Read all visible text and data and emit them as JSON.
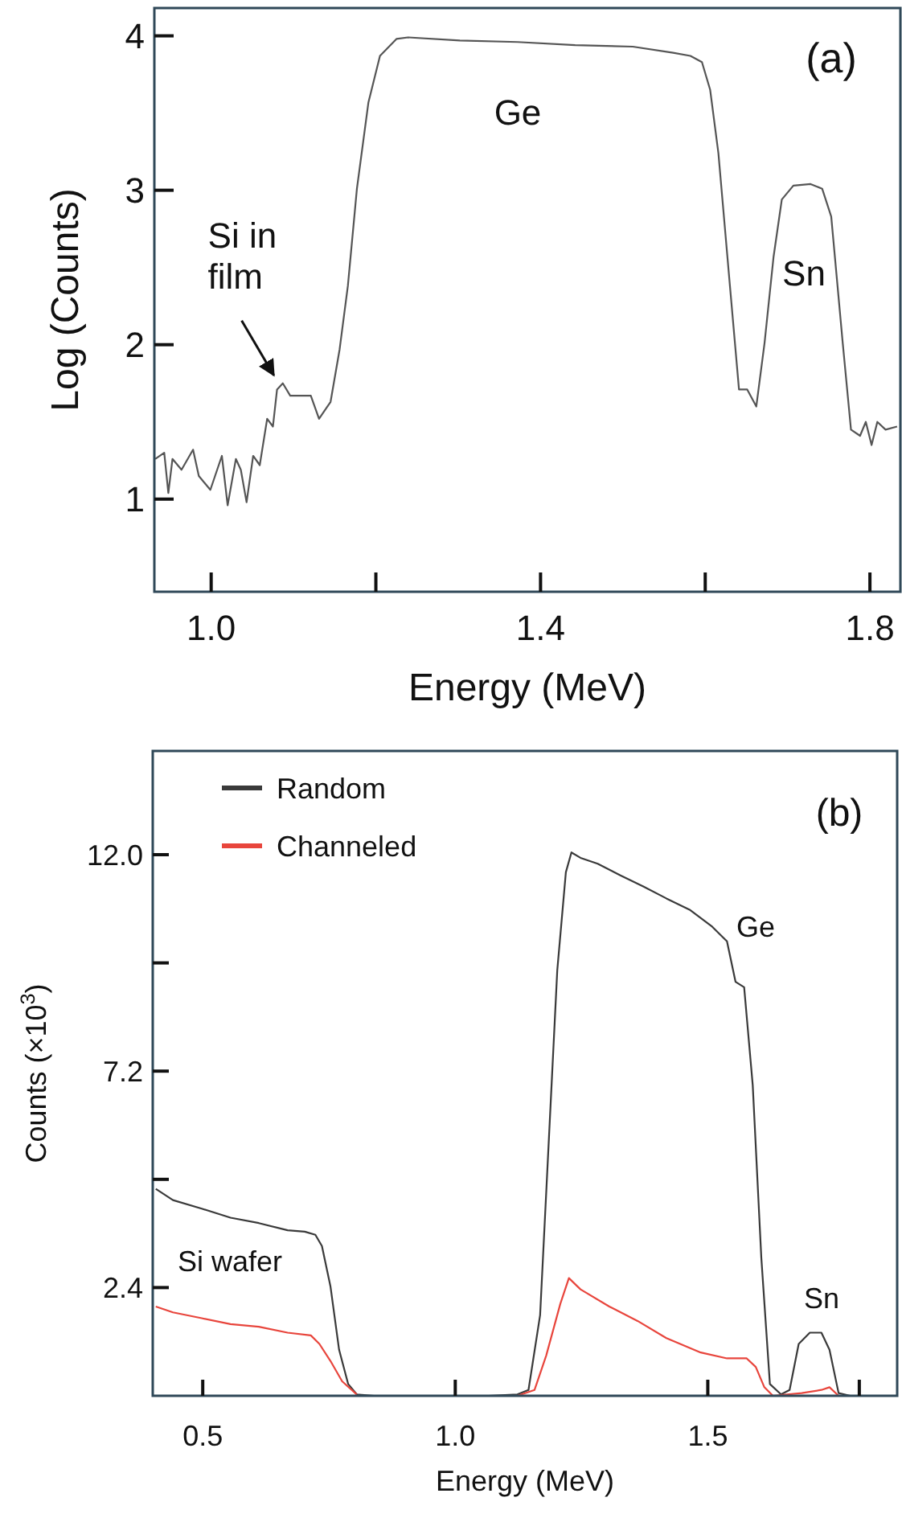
{
  "chart_data": [
    {
      "type": "line",
      "title": "(a)",
      "xlabel": "Energy (MeV)",
      "ylabel": "Log (Counts)",
      "xlim": [
        0.931,
        1.837
      ],
      "xticks": [
        {
          "value": 1.0,
          "label": "1.0"
        },
        {
          "value": 1.2,
          "label": null
        },
        1.4,
        {
          "value": 1.6,
          "label": null
        },
        1.8
      ],
      "ylim": [
        0.4,
        4.18
      ],
      "yticks": [
        1,
        2,
        3,
        4
      ],
      "grid": false,
      "legend": false,
      "series": [
        {
          "color": "#555555",
          "x": [
            0.932,
            0.943,
            0.948,
            0.953,
            0.964,
            0.978,
            0.985,
            0.999,
            1.013,
            1.02,
            1.03,
            1.036,
            1.043,
            1.051,
            1.059,
            1.068,
            1.075,
            1.08,
            1.087,
            1.096,
            1.11,
            1.121,
            1.131,
            1.145,
            1.156,
            1.166,
            1.177,
            1.191,
            1.205,
            1.225,
            1.239,
            1.302,
            1.372,
            1.442,
            1.512,
            1.561,
            1.582,
            1.596,
            1.606,
            1.616,
            1.63,
            1.641,
            1.651,
            1.662,
            1.672,
            1.683,
            1.693,
            1.707,
            1.728,
            1.742,
            1.753,
            1.767,
            1.777,
            1.788,
            1.795,
            1.802,
            1.809,
            1.819,
            1.833
          ],
          "values": [
            1.26,
            1.3,
            1.04,
            1.26,
            1.19,
            1.32,
            1.15,
            1.06,
            1.28,
            0.96,
            1.26,
            1.19,
            0.98,
            1.28,
            1.22,
            1.52,
            1.47,
            1.71,
            1.75,
            1.67,
            1.67,
            1.67,
            1.52,
            1.63,
            1.97,
            2.38,
            3.01,
            3.57,
            3.87,
            3.98,
            3.99,
            3.97,
            3.96,
            3.94,
            3.93,
            3.89,
            3.87,
            3.83,
            3.65,
            3.24,
            2.38,
            1.71,
            1.71,
            1.6,
            2.01,
            2.57,
            2.94,
            3.03,
            3.04,
            3.01,
            2.83,
            2.01,
            1.45,
            1.41,
            1.5,
            1.35,
            1.5,
            1.45,
            1.47
          ]
        }
      ],
      "annotations": [
        {
          "text": "Si in film",
          "x": 1.08,
          "y": 1.75
        },
        "Ge",
        "Sn"
      ]
    },
    {
      "type": "line",
      "title": "(b)",
      "xlabel": "Energy (MeV)",
      "ylabel": "Counts (×10$^{3}$)",
      "xlim": [
        0.401,
        1.875
      ],
      "xticks": [
        0.5,
        {
          "value": 1.0,
          "label": "1.0"
        },
        1.5,
        {
          "value": 1.8,
          "label": null
        }
      ],
      "ylim": [
        0,
        14.3
      ],
      "yticks": [
        {
          "value": 2.4,
          "label": "2.4"
        },
        {
          "value": 4.8,
          "label": null
        },
        {
          "value": 7.2,
          "label": "7.2"
        },
        {
          "value": 9.6,
          "label": null
        },
        {
          "value": 12.0,
          "label": "12.0"
        }
      ],
      "grid": false,
      "legend": "top left",
      "series": [
        {
          "name": "Random",
          "color": "#3a3a3a",
          "x": [
            0.407,
            0.441,
            0.498,
            0.555,
            0.611,
            0.668,
            0.702,
            0.723,
            0.736,
            0.753,
            0.77,
            0.788,
            0.805,
            0.839,
            0.95,
            1.066,
            1.123,
            1.145,
            1.168,
            1.185,
            1.202,
            1.219,
            1.23,
            1.248,
            1.282,
            1.327,
            1.373,
            1.418,
            1.464,
            1.509,
            1.538,
            1.555,
            1.572,
            1.589,
            1.606,
            1.623,
            1.645,
            1.662,
            1.68,
            1.702,
            1.725,
            1.741,
            1.759,
            1.782
          ],
          "values": [
            4.59,
            4.34,
            4.15,
            3.95,
            3.83,
            3.67,
            3.64,
            3.57,
            3.32,
            2.42,
            1.02,
            0.26,
            0.03,
            0,
            0,
            0,
            0.03,
            0.13,
            1.79,
            5.61,
            9.44,
            11.61,
            12.05,
            11.93,
            11.8,
            11.54,
            11.29,
            11.03,
            10.78,
            10.4,
            10.08,
            9.18,
            9.06,
            6.89,
            3.06,
            0.26,
            0.03,
            0.13,
            1.15,
            1.4,
            1.4,
            1.02,
            0.06,
            0
          ]
        },
        {
          "name": "Channeled",
          "color": "#e8453c",
          "x": [
            0.407,
            0.441,
            0.498,
            0.555,
            0.611,
            0.668,
            0.714,
            0.731,
            0.753,
            0.776,
            0.805,
            0.839,
            1.0,
            1.123,
            1.157,
            1.18,
            1.208,
            1.225,
            1.248,
            1.305,
            1.361,
            1.418,
            1.486,
            1.538,
            1.577,
            1.595,
            1.612,
            1.629,
            1.686,
            1.725,
            1.741,
            1.759
          ],
          "values": [
            1.98,
            1.85,
            1.72,
            1.59,
            1.53,
            1.4,
            1.34,
            1.15,
            0.77,
            0.32,
            0.03,
            null,
            null,
            0,
            0.13,
            0.89,
            2.04,
            2.61,
            2.36,
            1.98,
            1.66,
            1.28,
            0.96,
            0.83,
            0.83,
            0.64,
            0.19,
            0,
            0.06,
            0.13,
            0.19,
            0
          ]
        }
      ],
      "annotations": [
        "Ge",
        "Sn",
        "Si wafer"
      ]
    }
  ]
}
